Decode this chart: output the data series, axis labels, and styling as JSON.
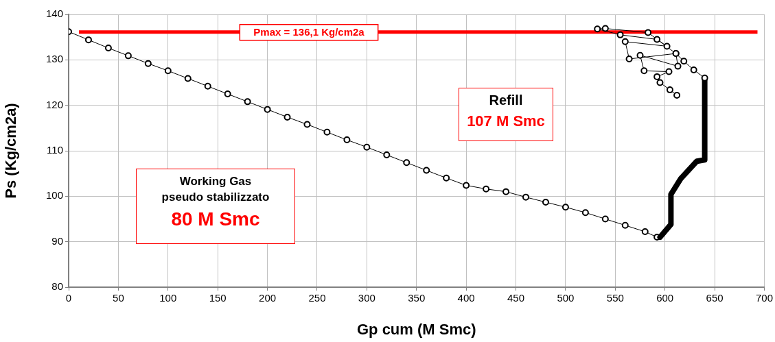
{
  "chart_data": {
    "type": "line",
    "xlabel": "Gp cum (M Smc)",
    "ylabel": "Ps (Kg/cm2a)",
    "xlim": [
      0,
      700
    ],
    "xticks": [
      0,
      50,
      100,
      150,
      200,
      250,
      300,
      350,
      400,
      450,
      500,
      550,
      600,
      650,
      700
    ],
    "ylim": [
      80,
      140
    ],
    "yticks": [
      80,
      90,
      100,
      110,
      120,
      130,
      140
    ],
    "grid": true,
    "legend": false,
    "series": [
      {
        "color": "#000000",
        "marker": "circle",
        "line_style": "solid",
        "x": [
          0,
          20,
          40,
          60,
          80,
          100,
          120,
          140,
          160,
          180,
          200,
          220,
          240,
          260,
          280,
          300,
          320,
          340,
          360,
          380,
          400,
          420,
          440,
          460,
          480,
          500,
          520,
          540,
          560,
          580,
          592
        ],
        "values": [
          136.2,
          134.4,
          132.6,
          130.9,
          129.2,
          127.6,
          125.9,
          124.2,
          122.5,
          120.8,
          119.1,
          117.4,
          115.8,
          114.1,
          112.4,
          110.8,
          109.1,
          107.4,
          105.7,
          104.0,
          102.4,
          101.6,
          101.0,
          99.8,
          98.7,
          97.6,
          96.4,
          95.0,
          93.6,
          92.2,
          91.0
        ]
      },
      {
        "color": "#000000",
        "marker": "none",
        "line_style": "solid",
        "x": [
          595,
          606,
          606,
          616,
          632,
          640,
          640
        ],
        "values": [
          91.0,
          93.8,
          100.4,
          103.9,
          107.7,
          108.0,
          126.0
        ]
      },
      {
        "color": "#000000",
        "marker": "circle",
        "line_style": "solid",
        "x": [
          640,
          629,
          619,
          611,
          583,
          540,
          532,
          555,
          592,
          602,
          560,
          564,
          611,
          613,
          575,
          579,
          604,
          592,
          595,
          605,
          612
        ],
        "values": [
          126.0,
          127.8,
          129.7,
          131.4,
          136.0,
          136.9,
          136.8,
          135.5,
          134.5,
          133.0,
          134.0,
          130.2,
          131.4,
          128.6,
          131.0,
          127.6,
          127.4,
          126.3,
          125.0,
          123.4,
          122.2
        ]
      }
    ],
    "ref_lines": [
      {
        "axis": "y",
        "value": 136.1,
        "label": "Pmax = 136,1 Kg/cm2a",
        "color": "#ff0000",
        "line_style": "solid"
      }
    ],
    "annotations": [
      "Refill",
      "107 M Smc",
      "Working Gas",
      "pseudo stabilizzato",
      "80 M Smc"
    ]
  }
}
